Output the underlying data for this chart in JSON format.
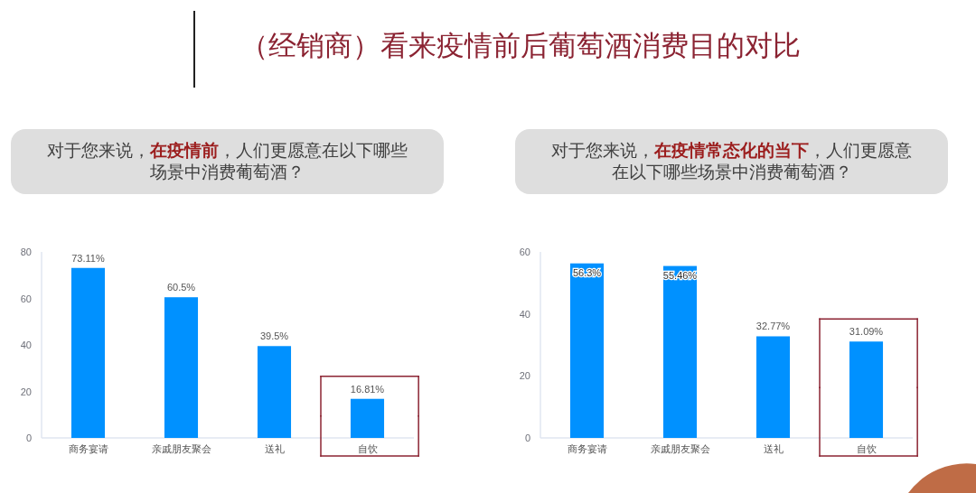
{
  "chart_data": [
    {
      "type": "bar",
      "title": "（经销商）看来疫情前后葡萄酒消费目的对比",
      "subtitle": "对于您来说，**在疫情前**，人们更愿意在以下哪些场景中消费葡萄酒？",
      "categories": [
        "商务宴请",
        "亲戚朋友聚会",
        "送礼",
        "自饮"
      ],
      "values": [
        73.11,
        60.5,
        39.5,
        16.81
      ],
      "value_labels": [
        "73.11%",
        "60.5%",
        "39.5%",
        "16.81%"
      ],
      "color": "#0091ff",
      "ylim": [
        0,
        80
      ],
      "yticks": [
        0,
        20,
        40,
        60,
        80
      ]
    },
    {
      "type": "bar",
      "subtitle": "对于您来说，**在疫情常态化的当下**，人们更愿意在以下哪些场景中消费葡萄酒？",
      "categories": [
        "商务宴请",
        "亲戚朋友聚会",
        "送礼",
        "自饮"
      ],
      "values": [
        56.3,
        55.46,
        32.77,
        31.09
      ],
      "value_labels": [
        "56.3%",
        "55.46%",
        "32.77%",
        "31.09%"
      ],
      "color": "#0091ff",
      "ylim": [
        0,
        60
      ],
      "yticks": [
        0,
        20,
        40,
        60
      ]
    }
  ]
}
